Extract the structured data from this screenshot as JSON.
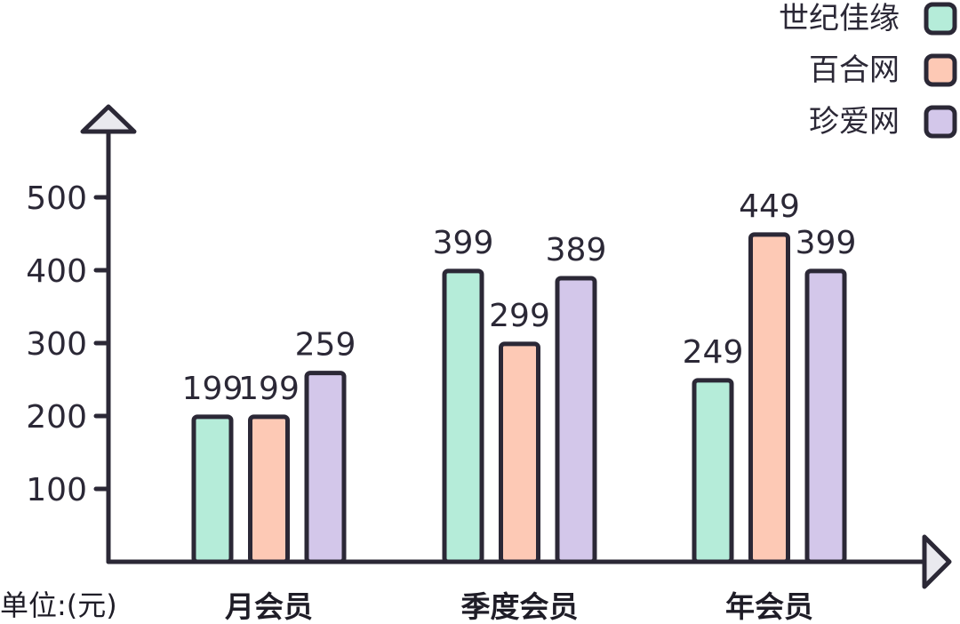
{
  "chart_data": {
    "type": "bar",
    "unit_label": "单位:(元)",
    "categories": [
      "月会员",
      "季度会员",
      "年会员"
    ],
    "series": [
      {
        "name": "世纪佳缘",
        "color": "#b5ecd9",
        "values": [
          199,
          399,
          249
        ]
      },
      {
        "name": "百合网",
        "color": "#fdc9b5",
        "values": [
          199,
          299,
          449
        ]
      },
      {
        "name": "珍爱网",
        "color": "#d3c7ea",
        "values": [
          259,
          389,
          399
        ]
      }
    ],
    "y_ticks": [
      100,
      200,
      300,
      400,
      500
    ],
    "ylim": [
      0,
      580
    ],
    "legend_position": "top-right",
    "grid": false,
    "axis_color": "#2b2836"
  }
}
